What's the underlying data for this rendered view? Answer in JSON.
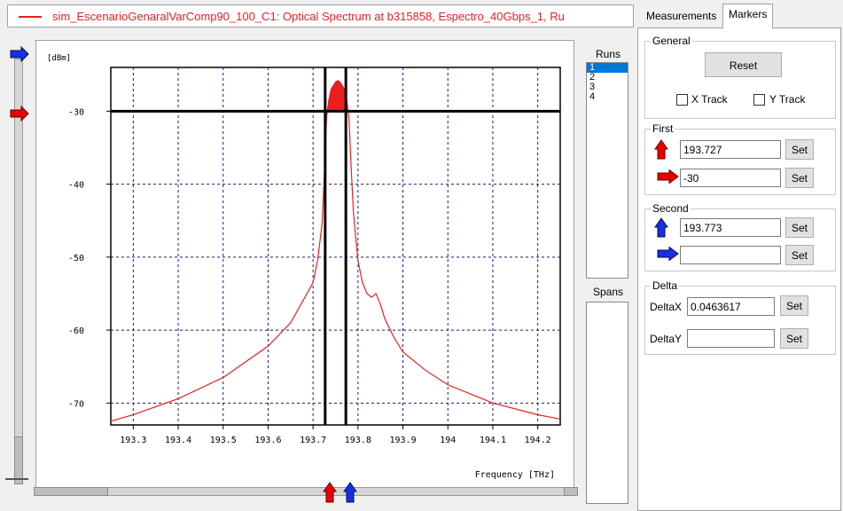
{
  "window": {
    "legend_color": "#e82020",
    "title": "sim_EscenarioGenaralVarComp90_100_C1: Optical Spectrum at b315858, Espectro_40Gbps_1, Ru"
  },
  "plot": {
    "background": "#ffffff",
    "trace_color": "#e82020",
    "grid_color": "#1a1a80",
    "marker_line_color": "#000000"
  },
  "chart_data": {
    "type": "line",
    "title": "",
    "xlabel": "Frequency [THz]",
    "ylabel": "[dBm]",
    "xlim": [
      193.25,
      194.25
    ],
    "ylim": [
      -73,
      -24
    ],
    "x_ticks": [
      "193.3",
      "193.4",
      "193.5",
      "193.6",
      "193.7",
      "193.8",
      "193.9",
      "194",
      "194.1",
      "194.2"
    ],
    "y_ticks": [
      "-30",
      "-40",
      "-50",
      "-60",
      "-70"
    ],
    "grid": true,
    "series": [
      {
        "x": [
          193.25,
          193.3,
          193.4,
          193.5,
          193.6,
          193.65,
          193.7,
          193.71,
          193.72,
          193.725,
          193.73,
          193.735,
          193.74,
          193.745,
          193.75,
          193.755,
          193.76,
          193.765,
          193.77,
          193.775,
          193.78,
          193.785,
          193.79,
          193.8,
          193.81,
          193.82,
          193.83,
          193.84,
          193.85,
          193.86,
          193.88,
          193.9,
          193.95,
          194.0,
          194.1,
          194.2,
          194.25
        ],
        "y": [
          -72.5,
          -71.6,
          -69.4,
          -66.5,
          -62.2,
          -59.0,
          -53.5,
          -50.5,
          -45.5,
          -39.0,
          -31.0,
          -28.5,
          -27.0,
          -26.5,
          -26.0,
          -25.8,
          -26.0,
          -26.5,
          -27.0,
          -28.5,
          -31.0,
          -38.0,
          -44.0,
          -50.5,
          -53.5,
          -55.0,
          -55.5,
          -55.0,
          -56.5,
          -58.5,
          -61.0,
          -63.0,
          -65.5,
          -67.5,
          -70.0,
          -71.6,
          -72.2
        ]
      }
    ],
    "markers": {
      "x1": 193.727,
      "x2": 193.773,
      "y1": -30
    }
  },
  "runs": {
    "label": "Runs",
    "items": [
      "1",
      "2",
      "3",
      "4"
    ],
    "selected_index": 0
  },
  "spans": {
    "label": "Spans"
  },
  "panel": {
    "tabs": [
      "Measurements",
      "Markers"
    ],
    "active_tab": "Markers",
    "general": {
      "title": "General",
      "reset_label": "Reset",
      "x_track_label": "X Track",
      "y_track_label": "Y Track"
    },
    "first": {
      "title": "First",
      "x_value": "193.727",
      "y_value": "-30",
      "set_label": "Set"
    },
    "second": {
      "title": "Second",
      "x_value": "193.773",
      "y_value": "",
      "set_label": "Set"
    },
    "delta": {
      "title": "Delta",
      "dx_label": "DeltaX",
      "dx_value": "0.0463617",
      "dy_label": "DeltaY",
      "dy_value": "",
      "set_label": "Set"
    }
  },
  "colors": {
    "marker_first": "#e80000",
    "marker_second": "#1830e0",
    "selection": "#0078d7"
  }
}
